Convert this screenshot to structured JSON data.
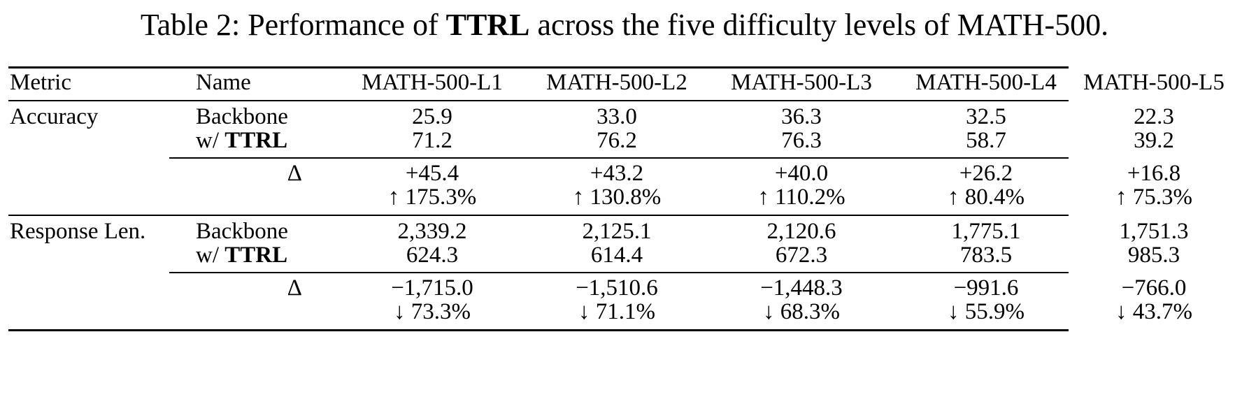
{
  "caption": {
    "prefix": "Table 2: Performance of ",
    "bold": "TTRL",
    "suffix": " across the five difficulty levels of MATH-500."
  },
  "header": {
    "metric": "Metric",
    "name": "Name",
    "cols": [
      "MATH-500-L1",
      "MATH-500-L2",
      "MATH-500-L3",
      "MATH-500-L4",
      "MATH-500-L5"
    ]
  },
  "accuracy": {
    "metric": "Accuracy",
    "backbone_label": "Backbone",
    "ttrl_prefix": "w/ ",
    "ttrl_bold": "TTRL",
    "delta_label": "Δ",
    "backbone": [
      "25.9",
      "33.0",
      "36.3",
      "32.5",
      "22.3"
    ],
    "ttrl": [
      "71.2",
      "76.2",
      "76.3",
      "58.7",
      "39.2"
    ],
    "delta_abs": [
      "+45.4",
      "+43.2",
      "+40.0",
      "+26.2",
      "+16.8"
    ],
    "delta_pct": [
      "↑ 175.3%",
      "↑ 130.8%",
      "↑ 110.2%",
      "↑ 80.4%",
      "↑ 75.3%"
    ]
  },
  "response_len": {
    "metric": "Response Len.",
    "backbone_label": "Backbone",
    "ttrl_prefix": "w/ ",
    "ttrl_bold": "TTRL",
    "delta_label": "Δ",
    "backbone": [
      "2,339.2",
      "2,125.1",
      "2,120.6",
      "1,775.1",
      "1,751.3"
    ],
    "ttrl": [
      "624.3",
      "614.4",
      "672.3",
      "783.5",
      "985.3"
    ],
    "delta_abs": [
      "−1,715.0",
      "−1,510.6",
      "−1,448.3",
      "−991.6",
      "−766.0"
    ],
    "delta_pct": [
      "↓ 73.3%",
      "↓ 71.1%",
      "↓ 68.3%",
      "↓ 55.9%",
      "↓ 43.7%"
    ]
  }
}
